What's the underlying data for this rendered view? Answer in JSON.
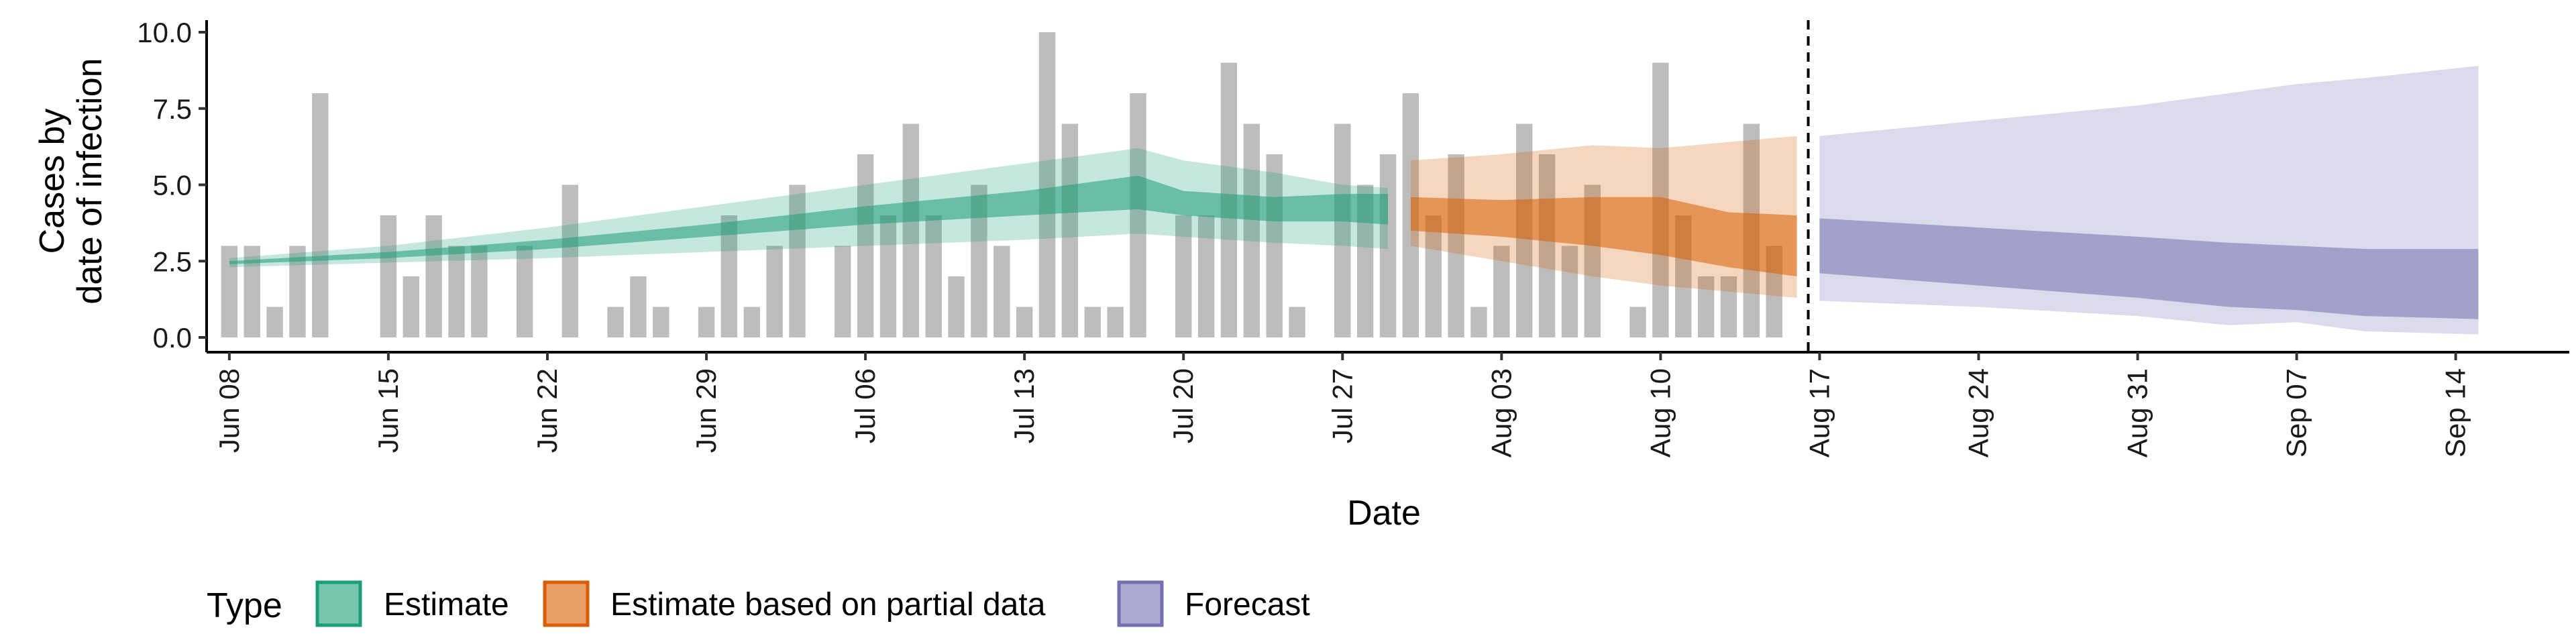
{
  "chart_data": {
    "type": "bar",
    "xlabel": "Date",
    "ylabel_lines": [
      "Cases by",
      "date of infection"
    ],
    "ylim": [
      0,
      10
    ],
    "yticks": [
      "0.0",
      "2.5",
      "5.0",
      "7.5",
      "10.0"
    ],
    "ytick_values": [
      0,
      2.5,
      5,
      7.5,
      10
    ],
    "x_range": [
      "2020-06-07",
      "2020-09-19"
    ],
    "xticks": [
      {
        "label": "Jun 08",
        "date": "2020-06-08"
      },
      {
        "label": "Jun 15",
        "date": "2020-06-15"
      },
      {
        "label": "Jun 22",
        "date": "2020-06-22"
      },
      {
        "label": "Jun 29",
        "date": "2020-06-29"
      },
      {
        "label": "Jul 06",
        "date": "2020-07-06"
      },
      {
        "label": "Jul 13",
        "date": "2020-07-13"
      },
      {
        "label": "Jul 20",
        "date": "2020-07-20"
      },
      {
        "label": "Jul 27",
        "date": "2020-07-27"
      },
      {
        "label": "Aug 03",
        "date": "2020-08-03"
      },
      {
        "label": "Aug 10",
        "date": "2020-08-10"
      },
      {
        "label": "Aug 17",
        "date": "2020-08-17"
      },
      {
        "label": "Aug 24",
        "date": "2020-08-24"
      },
      {
        "label": "Aug 31",
        "date": "2020-08-31"
      },
      {
        "label": "Sep 07",
        "date": "2020-09-07"
      },
      {
        "label": "Sep 14",
        "date": "2020-09-14"
      }
    ],
    "forecast_start_date": "2020-08-16",
    "observed_cases": {
      "start_date": "2020-06-08",
      "values": [
        3,
        3,
        1,
        3,
        8,
        0,
        0,
        4,
        2,
        4,
        3,
        3,
        0,
        3,
        0,
        5,
        0,
        1,
        2,
        1,
        0,
        1,
        4,
        1,
        3,
        5,
        0,
        3,
        6,
        4,
        7,
        4,
        2,
        5,
        3,
        1,
        10,
        7,
        1,
        1,
        8,
        0,
        4,
        4,
        9,
        7,
        6,
        1,
        0,
        7,
        5,
        6,
        8,
        4,
        6,
        1,
        3,
        7,
        6,
        3,
        5,
        0,
        1,
        9,
        4,
        2,
        2,
        7,
        3
      ]
    },
    "series": [
      {
        "name": "Estimate",
        "dates": [
          "2020-06-08",
          "2020-06-15",
          "2020-06-22",
          "2020-06-29",
          "2020-07-06",
          "2020-07-13",
          "2020-07-18",
          "2020-07-20",
          "2020-07-24",
          "2020-07-27",
          "2020-07-29"
        ],
        "lower90": [
          2.3,
          2.45,
          2.6,
          2.8,
          3.0,
          3.2,
          3.4,
          3.3,
          3.1,
          3.0,
          2.9
        ],
        "upper90": [
          2.6,
          3.0,
          3.6,
          4.3,
          5.0,
          5.7,
          6.2,
          5.8,
          5.4,
          5.0,
          4.9
        ],
        "lower50": [
          2.4,
          2.6,
          2.9,
          3.3,
          3.7,
          4.0,
          4.2,
          4.0,
          3.8,
          3.8,
          3.7
        ],
        "upper50": [
          2.5,
          2.8,
          3.2,
          3.7,
          4.3,
          4.8,
          5.3,
          4.8,
          4.6,
          4.7,
          4.7
        ],
        "color": "#1b9e77"
      },
      {
        "name": "Estimate based on partial data",
        "dates": [
          "2020-07-30",
          "2020-08-03",
          "2020-08-07",
          "2020-08-10",
          "2020-08-13",
          "2020-08-16"
        ],
        "lower90": [
          3.0,
          2.5,
          2.0,
          1.7,
          1.5,
          1.3
        ],
        "upper90": [
          5.8,
          6.0,
          6.3,
          6.2,
          6.4,
          6.6
        ],
        "lower50": [
          3.5,
          3.3,
          3.0,
          2.7,
          2.3,
          2.0
        ],
        "upper50": [
          4.6,
          4.5,
          4.6,
          4.6,
          4.1,
          4.0
        ],
        "color": "#d95f02"
      },
      {
        "name": "Forecast",
        "dates": [
          "2020-08-17",
          "2020-08-24",
          "2020-08-31",
          "2020-09-04",
          "2020-09-07",
          "2020-09-10",
          "2020-09-15"
        ],
        "lower90": [
          1.2,
          1.0,
          0.7,
          0.4,
          0.5,
          0.2,
          0.1
        ],
        "upper90": [
          6.6,
          7.1,
          7.6,
          8.0,
          8.3,
          8.5,
          8.9
        ],
        "lower50": [
          2.1,
          1.7,
          1.3,
          1.0,
          0.9,
          0.7,
          0.6
        ],
        "upper50": [
          3.9,
          3.6,
          3.3,
          3.1,
          3.0,
          2.9,
          2.9
        ],
        "color": "#7570b3"
      }
    ],
    "legend": {
      "position": "bottom",
      "title": "Type",
      "entries": [
        {
          "label": "Estimate",
          "color": "#1b9e77"
        },
        {
          "label": "Estimate based on partial data",
          "color": "#d95f02"
        },
        {
          "label": "Forecast",
          "color": "#7570b3"
        }
      ]
    },
    "grid": false
  }
}
